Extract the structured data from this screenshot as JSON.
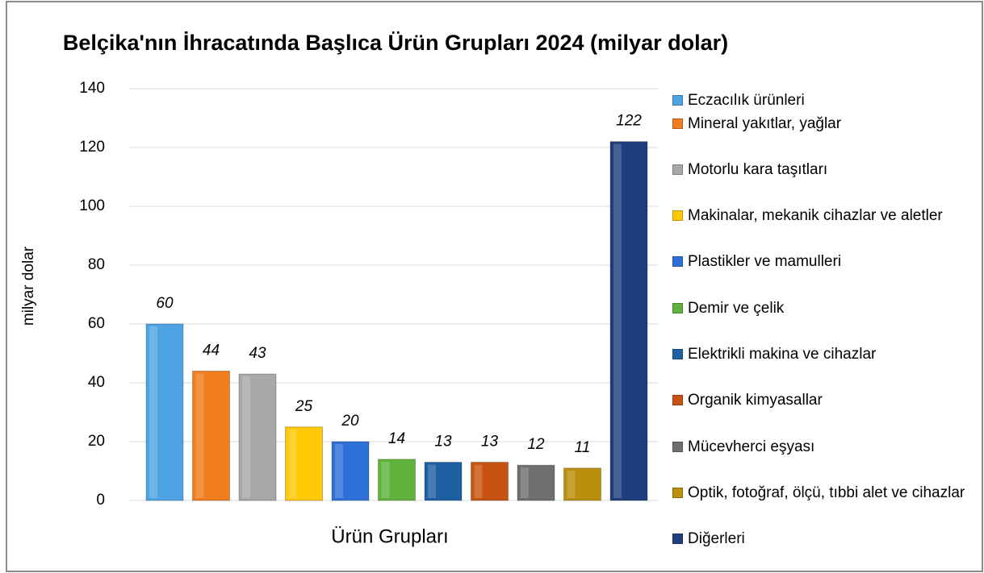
{
  "chart_data": {
    "type": "bar",
    "title": "Belçika'nın İhracatında Başlıca Ürün Grupları 2024 (milyar dolar)",
    "y_label": "milyar dolar",
    "categories": [
      "Ürün Grupları"
    ],
    "series": [
      {
        "name": "Eczacılık ürünleri",
        "color": "#4ea4e2",
        "values": [
          60
        ]
      },
      {
        "name": "Mineral yakıtlar, yağlar",
        "color": "#f27d1e",
        "values": [
          44
        ]
      },
      {
        "name": "Motorlu kara taşıtları",
        "color": "#a8a8a8",
        "values": [
          43
        ]
      },
      {
        "name": "Makinalar, mekanik cihazlar ve aletler",
        "color": "#ffc905",
        "values": [
          25
        ]
      },
      {
        "name": "Plastikler ve mamulleri",
        "color": "#2f70d8",
        "values": [
          20
        ]
      },
      {
        "name": "Demir ve çelik",
        "color": "#5fb33c",
        "values": [
          14
        ]
      },
      {
        "name": "Elektrikli makina ve cihazlar",
        "color": "#1f60a2",
        "values": [
          13
        ]
      },
      {
        "name": "Organik kimyasallar",
        "color": "#c6530f",
        "values": [
          13
        ]
      },
      {
        "name": "Mücevherci eşyası",
        "color": "#6f6f6f",
        "values": [
          12
        ]
      },
      {
        "name": "Optik, fotoğraf, ölçü, tıbbi alet ve cihazlar",
        "color": "#b98f0b",
        "values": [
          11
        ]
      },
      {
        "name": "Diğerleri",
        "color": "#1f3e7d",
        "values": [
          122
        ]
      }
    ],
    "ylim": [
      0,
      140
    ],
    "yticks": [
      0,
      20,
      40,
      60,
      80,
      100,
      120,
      140
    ],
    "grid": true,
    "legend": "right"
  }
}
